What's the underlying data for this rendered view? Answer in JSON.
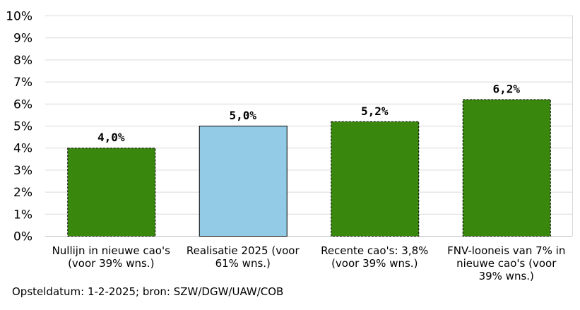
{
  "chart_data": {
    "type": "bar",
    "categories": [
      [
        "Nullijn in nieuwe cao's",
        "(voor 39% wns.)"
      ],
      [
        "Realisatie 2025 (voor",
        "61% wns.)"
      ],
      [
        "Recente cao's: 3,8%",
        "(voor 39% wns.)"
      ],
      [
        "FNV-looneis van 7% in",
        "nieuwe cao's (voor",
        "39% wns.)"
      ]
    ],
    "values": [
      4.0,
      5.0,
      5.2,
      6.2
    ],
    "data_labels": [
      "4,0%",
      "5,0%",
      "5,2%",
      "6,2%"
    ],
    "bar_colors": [
      "#3a870e",
      "#93cbe7",
      "#3a870e",
      "#3a870e"
    ],
    "bar_border_styles": [
      "dashed",
      "solid",
      "dashed",
      "dashed"
    ],
    "ylim": [
      0,
      10
    ],
    "yticks": [
      0,
      1,
      2,
      3,
      4,
      5,
      6,
      7,
      8,
      9,
      10
    ],
    "ytick_labels": [
      "0%",
      "1%",
      "2%",
      "3%",
      "4%",
      "5%",
      "6%",
      "7%",
      "8%",
      "9%",
      "10%"
    ],
    "grid": true,
    "title": "",
    "xlabel": "",
    "ylabel": ""
  },
  "source_note": "Opsteldatum: 1-2-2025; bron: SZW/DGW/UAW/COB",
  "colors": {
    "green_bar": "#3a870e",
    "blue_bar": "#93cbe7",
    "gridline": "#d9d9d9"
  }
}
